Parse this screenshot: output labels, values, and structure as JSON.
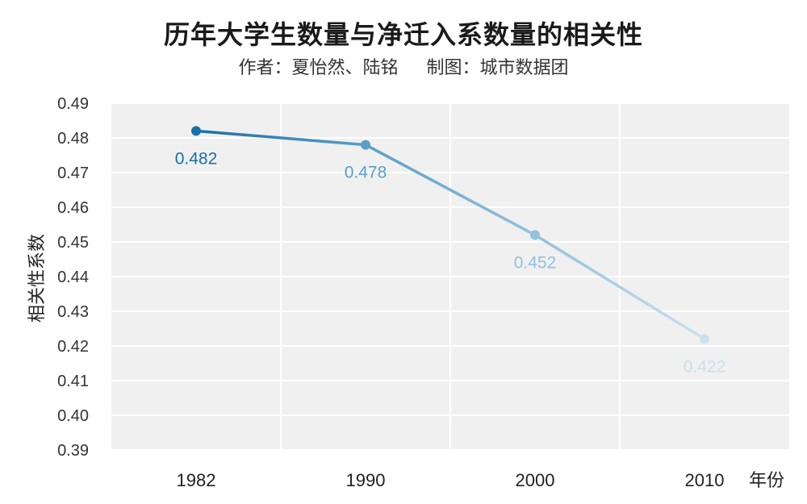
{
  "chart_data": {
    "type": "line",
    "title": "历年大学生数量与净迁入系数量的相关性",
    "subtitle_author": "作者：夏怡然、陆铭",
    "subtitle_maker": "制图：城市数据团",
    "ylabel": "相关性系数",
    "xunit": "年份",
    "categories": [
      "1982",
      "1990",
      "2000",
      "2010"
    ],
    "values": [
      0.482,
      0.478,
      0.452,
      0.422
    ],
    "data_labels": [
      "0.482",
      "0.478",
      "0.452",
      "0.422"
    ],
    "ylim": [
      0.39,
      0.49
    ],
    "yticks": [
      "0.39",
      "0.40",
      "0.41",
      "0.42",
      "0.43",
      "0.44",
      "0.45",
      "0.46",
      "0.47",
      "0.48",
      "0.49"
    ],
    "grid": true,
    "colors": [
      "#1a6fa8",
      "#5b9fc9",
      "#94c0dd",
      "#c9e0ee"
    ],
    "plot_background": "#f0f0f0"
  }
}
